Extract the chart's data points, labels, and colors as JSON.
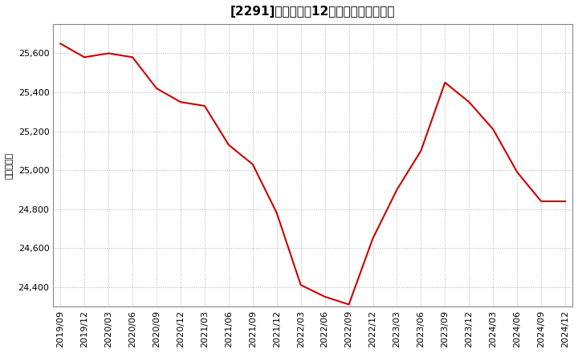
{
  "title": "[2291]　売上高の12か月移動合計の推移",
  "ylabel": "（百万円）",
  "line_color": "#cc0000",
  "background_color": "#ffffff",
  "plot_background_color": "#ffffff",
  "grid_color": "#b0b0b0",
  "dates": [
    "2019/09",
    "2019/12",
    "2020/03",
    "2020/06",
    "2020/09",
    "2020/12",
    "2021/03",
    "2021/06",
    "2021/09",
    "2021/12",
    "2022/03",
    "2022/06",
    "2022/09",
    "2022/12",
    "2023/03",
    "2023/06",
    "2023/09",
    "2023/12",
    "2024/03",
    "2024/06",
    "2024/09",
    "2024/12"
  ],
  "values": [
    25650,
    25580,
    25600,
    25580,
    25420,
    25350,
    25330,
    25130,
    25030,
    24780,
    24410,
    24350,
    24310,
    24650,
    24900,
    25100,
    25450,
    25350,
    25210,
    24990,
    24840,
    24840
  ],
  "ylim_min": 24300,
  "ylim_max": 25750,
  "yticks": [
    24400,
    24600,
    24800,
    25000,
    25200,
    25400,
    25600
  ],
  "title_fontsize": 11,
  "axis_fontsize": 8,
  "ylabel_fontsize": 8
}
